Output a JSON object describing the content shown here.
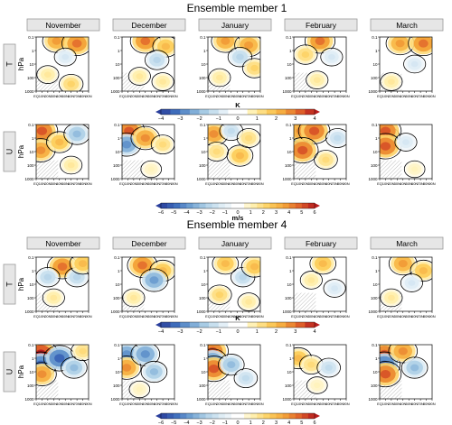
{
  "chart_data": [
    {
      "type": "heatmap",
      "title": "Ensemble member 1",
      "columns": [
        "November",
        "December",
        "January",
        "February",
        "March"
      ],
      "rows": [
        {
          "row_label": "T",
          "ylabel": "hPa",
          "colorbar": {
            "unit": "K",
            "ticks": [
              "−4",
              "−3",
              "−2",
              "−1",
              "0",
              "1",
              "2",
              "3",
              "4"
            ],
            "range": [
              -4,
              4
            ]
          },
          "x_ticks": [
            "EQ",
            "10N",
            "20N",
            "30N",
            "40N",
            "50N",
            "60N",
            "70N",
            "80N",
            "90N"
          ],
          "y_ticks": [
            "0.1",
            "1",
            "10",
            "100",
            "1000"
          ],
          "y_scale": "log",
          "panels": [
            {
              "month": "November",
              "anomalies": [
                {
                  "lat": 35,
                  "p": 0.2,
                  "v": 2.5
                },
                {
                  "lat": 70,
                  "p": 0.3,
                  "v": 3
                },
                {
                  "lat": 50,
                  "p": 3,
                  "v": -1
                },
                {
                  "lat": 20,
                  "p": 60,
                  "v": 1
                },
                {
                  "lat": 60,
                  "p": 300,
                  "v": 1.5
                }
              ]
            },
            {
              "month": "December",
              "anomalies": [
                {
                  "lat": 40,
                  "p": 0.2,
                  "v": 3
                },
                {
                  "lat": 75,
                  "p": 0.5,
                  "v": 2
                },
                {
                  "lat": 60,
                  "p": 5,
                  "v": -1.5
                },
                {
                  "lat": 30,
                  "p": 80,
                  "v": 1
                },
                {
                  "lat": 70,
                  "p": 200,
                  "v": 1
                }
              ]
            },
            {
              "month": "January",
              "anomalies": [
                {
                  "lat": 30,
                  "p": 0.2,
                  "v": 2.5
                },
                {
                  "lat": 70,
                  "p": 0.4,
                  "v": 2.5
                },
                {
                  "lat": 55,
                  "p": 3,
                  "v": -1.5
                },
                {
                  "lat": 20,
                  "p": 100,
                  "v": 1
                },
                {
                  "lat": 80,
                  "p": 20,
                  "v": 1.5
                }
              ]
            },
            {
              "month": "February",
              "anomalies": [
                {
                  "lat": 45,
                  "p": 0.2,
                  "v": 3
                },
                {
                  "lat": 20,
                  "p": 2,
                  "v": 1.5
                },
                {
                  "lat": 65,
                  "p": 3,
                  "v": -1
                },
                {
                  "lat": 40,
                  "p": 150,
                  "v": 1
                }
              ]
            },
            {
              "month": "March",
              "anomalies": [
                {
                  "lat": 35,
                  "p": 0.3,
                  "v": 2.5
                },
                {
                  "lat": 75,
                  "p": 0.3,
                  "v": 3
                },
                {
                  "lat": 60,
                  "p": 10,
                  "v": -1
                },
                {
                  "lat": 20,
                  "p": 200,
                  "v": 1
                }
              ]
            }
          ]
        },
        {
          "row_label": "U",
          "ylabel": "hPa",
          "colorbar": {
            "unit": "m/s",
            "ticks": [
              "−6",
              "−5",
              "−4",
              "−3",
              "−2",
              "−1",
              "0",
              "1",
              "2",
              "3",
              "4",
              "5",
              "6"
            ],
            "range": [
              -6,
              6
            ]
          },
          "x_ticks": [
            "EQ",
            "10N",
            "20N",
            "30N",
            "40N",
            "50N",
            "60N",
            "70N",
            "80N",
            "90N"
          ],
          "y_ticks": [
            "0.1",
            "1",
            "10",
            "100",
            "1000"
          ],
          "y_scale": "log",
          "panels": [
            {
              "month": "November",
              "anomalies": [
                {
                  "lat": 5,
                  "p": 1,
                  "v": -5
                },
                {
                  "lat": 10,
                  "p": 0.3,
                  "v": 5
                },
                {
                  "lat": 8,
                  "p": 8,
                  "v": 4
                },
                {
                  "lat": 40,
                  "p": 2,
                  "v": 3
                },
                {
                  "lat": 70,
                  "p": 0.5,
                  "v": -3
                },
                {
                  "lat": 60,
                  "p": 100,
                  "v": 1.5
                }
              ]
            },
            {
              "month": "December",
              "anomalies": [
                {
                  "lat": 12,
                  "p": 0.3,
                  "v": 5
                },
                {
                  "lat": 8,
                  "p": 3,
                  "v": -4
                },
                {
                  "lat": 40,
                  "p": 1,
                  "v": 4
                },
                {
                  "lat": 70,
                  "p": 3,
                  "v": 2
                },
                {
                  "lat": 50,
                  "p": 200,
                  "v": 1
                }
              ]
            },
            {
              "month": "January",
              "anomalies": [
                {
                  "lat": 10,
                  "p": 0.5,
                  "v": 4
                },
                {
                  "lat": 40,
                  "p": 0.3,
                  "v": -2
                },
                {
                  "lat": 15,
                  "p": 10,
                  "v": 2
                },
                {
                  "lat": 55,
                  "p": 20,
                  "v": 3
                },
                {
                  "lat": 70,
                  "p": 1,
                  "v": 2
                }
              ]
            },
            {
              "month": "February",
              "anomalies": [
                {
                  "lat": 8,
                  "p": 1.5,
                  "v": -4
                },
                {
                  "lat": 12,
                  "p": 0.3,
                  "v": 4
                },
                {
                  "lat": 35,
                  "p": 0.3,
                  "v": 5
                },
                {
                  "lat": 15,
                  "p": 8,
                  "v": 5
                },
                {
                  "lat": 55,
                  "p": 40,
                  "v": 2
                },
                {
                  "lat": 75,
                  "p": 1,
                  "v": -2
                }
              ]
            },
            {
              "month": "March",
              "anomalies": [
                {
                  "lat": 8,
                  "p": 1,
                  "v": -5
                },
                {
                  "lat": 10,
                  "p": 0.3,
                  "v": 5
                },
                {
                  "lat": 10,
                  "p": 4,
                  "v": 5
                },
                {
                  "lat": 45,
                  "p": 2,
                  "v": -1.5
                },
                {
                  "lat": 60,
                  "p": 200,
                  "v": 1
                }
              ]
            }
          ]
        }
      ]
    },
    {
      "type": "heatmap",
      "title": "Ensemble member 4",
      "columns": [
        "November",
        "December",
        "January",
        "February",
        "March"
      ],
      "rows": [
        {
          "row_label": "T",
          "ylabel": "hPa",
          "colorbar": {
            "unit": "K",
            "ticks": [
              "−4",
              "−3",
              "−2",
              "−1",
              "0",
              "1",
              "2",
              "3",
              "4"
            ],
            "range": [
              -4,
              4
            ]
          },
          "x_ticks": [
            "EQ",
            "10N",
            "20N",
            "30N",
            "40N",
            "50N",
            "60N",
            "70N",
            "80N",
            "90N"
          ],
          "y_ticks": [
            "0.1",
            "1",
            "10",
            "100",
            "1000"
          ],
          "y_scale": "log",
          "panels": [
            {
              "month": "November",
              "anomalies": [
                {
                  "lat": 45,
                  "p": 0.5,
                  "v": 3
                },
                {
                  "lat": 20,
                  "p": 3,
                  "v": -1.5
                },
                {
                  "lat": 70,
                  "p": 3,
                  "v": -1.5
                },
                {
                  "lat": 30,
                  "p": 100,
                  "v": 1
                },
                {
                  "lat": 80,
                  "p": 0.3,
                  "v": 2
                }
              ]
            },
            {
              "month": "December",
              "anomalies": [
                {
                  "lat": 35,
                  "p": 0.4,
                  "v": 3
                },
                {
                  "lat": 70,
                  "p": 1,
                  "v": 2
                },
                {
                  "lat": 55,
                  "p": 5,
                  "v": -2.5
                },
                {
                  "lat": 20,
                  "p": 100,
                  "v": 1
                }
              ]
            },
            {
              "month": "January",
              "anomalies": [
                {
                  "lat": 30,
                  "p": 0.3,
                  "v": 2
                },
                {
                  "lat": 60,
                  "p": 3,
                  "v": -1.5
                },
                {
                  "lat": 80,
                  "p": 0.5,
                  "v": 2
                },
                {
                  "lat": 20,
                  "p": 60,
                  "v": 1.5
                },
                {
                  "lat": 70,
                  "p": 200,
                  "v": 1
                }
              ]
            },
            {
              "month": "February",
              "anomalies": [
                {
                  "lat": 50,
                  "p": 0.3,
                  "v": 2
                },
                {
                  "lat": 30,
                  "p": 5,
                  "v": 1
                },
                {
                  "lat": 70,
                  "p": 20,
                  "v": -1
                }
              ]
            },
            {
              "month": "March",
              "anomalies": [
                {
                  "lat": 40,
                  "p": 0.3,
                  "v": 2.5
                },
                {
                  "lat": 75,
                  "p": 1,
                  "v": 2
                },
                {
                  "lat": 55,
                  "p": 8,
                  "v": -1
                },
                {
                  "lat": 20,
                  "p": 100,
                  "v": 1
                }
              ]
            }
          ]
        },
        {
          "row_label": "U",
          "ylabel": "hPa",
          "colorbar": {
            "unit": "m/s",
            "ticks": [
              "−6",
              "−5",
              "−4",
              "−3",
              "−2",
              "−1",
              "0",
              "1",
              "2",
              "3",
              "4",
              "5",
              "6"
            ],
            "range": [
              -6,
              6
            ]
          },
          "x_ticks": [
            "EQ",
            "10N",
            "20N",
            "30N",
            "40N",
            "50N",
            "60N",
            "70N",
            "80N",
            "90N"
          ],
          "y_ticks": [
            "0.1",
            "1",
            "10",
            "100",
            "1000"
          ],
          "y_scale": "log",
          "panels": [
            {
              "month": "November",
              "anomalies": [
                {
                  "lat": 8,
                  "p": 0.5,
                  "v": 6
                },
                {
                  "lat": 8,
                  "p": 3,
                  "v": -5
                },
                {
                  "lat": 10,
                  "p": 15,
                  "v": 4
                },
                {
                  "lat": 40,
                  "p": 1,
                  "v": -5
                },
                {
                  "lat": 65,
                  "p": 5,
                  "v": -3
                },
                {
                  "lat": 80,
                  "p": 0.3,
                  "v": 2
                }
              ]
            },
            {
              "month": "December",
              "anomalies": [
                {
                  "lat": 8,
                  "p": 0.5,
                  "v": -4
                },
                {
                  "lat": 8,
                  "p": 5,
                  "v": 4
                },
                {
                  "lat": 40,
                  "p": 0.5,
                  "v": -4
                },
                {
                  "lat": 55,
                  "p": 10,
                  "v": -3
                },
                {
                  "lat": 30,
                  "p": 200,
                  "v": 1
                }
              ]
            },
            {
              "month": "January",
              "anomalies": [
                {
                  "lat": 8,
                  "p": 0.3,
                  "v": 5
                },
                {
                  "lat": 8,
                  "p": 1.5,
                  "v": -4
                },
                {
                  "lat": 10,
                  "p": 6,
                  "v": 5
                },
                {
                  "lat": 40,
                  "p": 3,
                  "v": -3
                },
                {
                  "lat": 65,
                  "p": 30,
                  "v": -2
                }
              ]
            },
            {
              "month": "February",
              "anomalies": [
                {
                  "lat": 8,
                  "p": 1,
                  "v": 3
                },
                {
                  "lat": 30,
                  "p": 3,
                  "v": 2
                },
                {
                  "lat": 60,
                  "p": 5,
                  "v": -2
                },
                {
                  "lat": 40,
                  "p": 100,
                  "v": 1
                }
              ]
            },
            {
              "month": "March",
              "anomalies": [
                {
                  "lat": 8,
                  "p": 0.5,
                  "v": 5
                },
                {
                  "lat": 8,
                  "p": 3,
                  "v": -5
                },
                {
                  "lat": 10,
                  "p": 15,
                  "v": 5
                },
                {
                  "lat": 40,
                  "p": 0.3,
                  "v": 4
                },
                {
                  "lat": 60,
                  "p": 5,
                  "v": -3
                }
              ]
            }
          ]
        }
      ]
    }
  ],
  "colors": {
    "diverging_scale": [
      "#2a3f9c",
      "#3f6fbd",
      "#75a6d4",
      "#b3d3e8",
      "#e1eef6",
      "#ffffff",
      "#fff0b0",
      "#fdd060",
      "#f4a53a",
      "#e0622a",
      "#b81e1e"
    ],
    "contour": "#000000",
    "hatch": "#9a9a9a",
    "header_bg": "#e6e6e6",
    "header_border": "#9a9a9a"
  }
}
